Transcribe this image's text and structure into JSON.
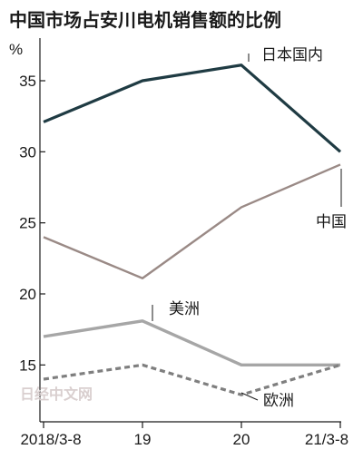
{
  "title": "中国市场占安川电机销售额的比例",
  "watermark": "日经中文网",
  "chart_data": {
    "type": "line",
    "ylabel": "%",
    "ylim": [
      11,
      38
    ],
    "yticks": [
      15,
      20,
      25,
      30,
      35
    ],
    "categories": [
      "2018/3-8",
      "19",
      "20",
      "21/3-8"
    ],
    "series": [
      {
        "name": "日本国内",
        "values": [
          32.1,
          35.0,
          36.1,
          30.0
        ],
        "color": "#1f3b43",
        "style": "solid"
      },
      {
        "name": "中国",
        "values": [
          24.0,
          21.1,
          26.1,
          29.1
        ],
        "color": "#9a8a86",
        "style": "solid"
      },
      {
        "name": "美洲",
        "values": [
          17.0,
          18.1,
          15.0,
          15.0
        ],
        "color": "#a6a6a6",
        "style": "solid"
      },
      {
        "name": "欧洲",
        "values": [
          14.0,
          15.0,
          12.9,
          15.0
        ],
        "color": "#7f7f7f",
        "style": "dashed"
      }
    ]
  }
}
